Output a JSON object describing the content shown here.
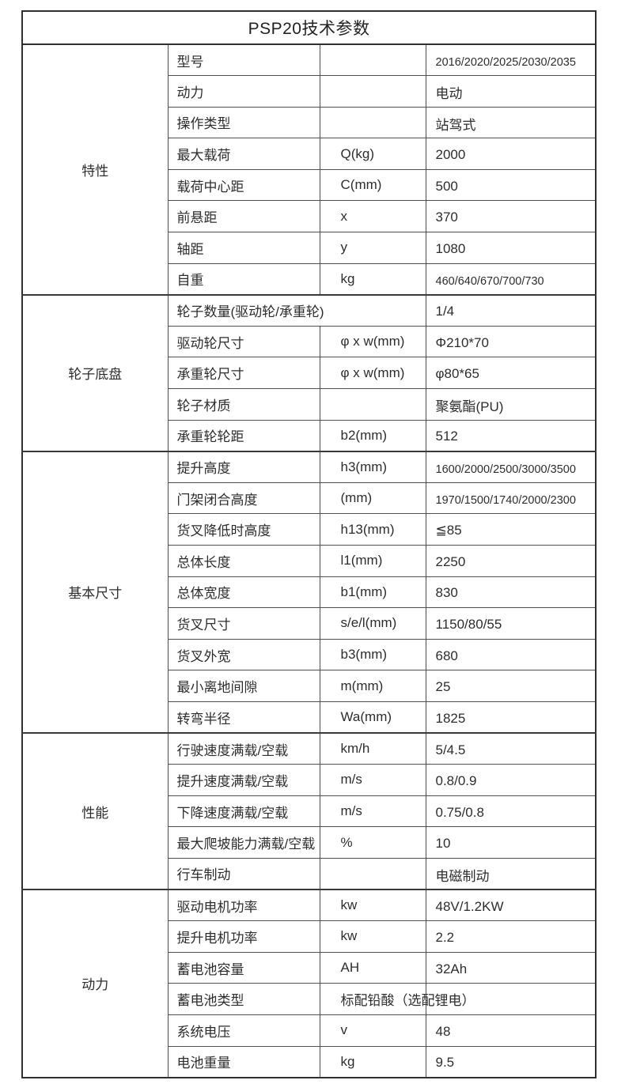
{
  "title": "PSP20技术参数",
  "table": {
    "sections": [
      {
        "label": "特性",
        "rows": [
          {
            "param": "型号",
            "symbol": "",
            "value": "2016/2020/2025/2030/2035"
          },
          {
            "param": "动力",
            "symbol": "",
            "value": "电动"
          },
          {
            "param": "操作类型",
            "symbol": "",
            "value": "站驾式"
          },
          {
            "param": "最大载荷",
            "symbol": "Q(kg)",
            "value": "2000"
          },
          {
            "param": "载荷中心距",
            "symbol": "C(mm)",
            "value": "500"
          },
          {
            "param": "前悬距",
            "symbol": "x",
            "value": "370"
          },
          {
            "param": "轴距",
            "symbol": "y",
            "value": "1080"
          },
          {
            "param": "自重",
            "symbol": "kg",
            "value": "460/640/670/700/730"
          }
        ]
      },
      {
        "label": "轮子底盘",
        "rows": [
          {
            "param": "轮子数量(驱动轮/承重轮)",
            "span": true,
            "value": "1/4"
          },
          {
            "param": "驱动轮尺寸",
            "symbol": "φ x w(mm)",
            "value": "Φ210*70"
          },
          {
            "param": "承重轮尺寸",
            "symbol": "φ x w(mm)",
            "value": "φ80*65"
          },
          {
            "param": "轮子材质",
            "symbol": "",
            "value": "聚氨酯(PU)"
          },
          {
            "param": "承重轮轮距",
            "symbol": "b2(mm)",
            "value": "512"
          }
        ]
      },
      {
        "label": "基本尺寸",
        "rows": [
          {
            "param": "提升高度",
            "symbol": "h3(mm)",
            "value": "1600/2000/2500/3000/3500"
          },
          {
            "param": "门架闭合高度",
            "symbol": "(mm)",
            "value": "1970/1500/1740/2000/2300"
          },
          {
            "param": "货叉降低时高度",
            "symbol": "h13(mm)",
            "value": "≦85"
          },
          {
            "param": "总体长度",
            "symbol": "l1(mm)",
            "value": "2250"
          },
          {
            "param": "总体宽度",
            "symbol": "b1(mm)",
            "value": "830"
          },
          {
            "param": "货叉尺寸",
            "symbol": "s/e/l(mm)",
            "value": "1150/80/55"
          },
          {
            "param": "货叉外宽",
            "symbol": "b3(mm)",
            "value": "680"
          },
          {
            "param": "最小离地间隙",
            "symbol": "m(mm)",
            "value": "25"
          },
          {
            "param": "转弯半径",
            "symbol": "Wa(mm)",
            "value": "1825"
          }
        ]
      },
      {
        "label": "性能",
        "rows": [
          {
            "param": "行驶速度满载/空载",
            "symbol": "km/h",
            "value": "5/4.5"
          },
          {
            "param": "提升速度满载/空载",
            "symbol": "m/s",
            "value": "0.8/0.9"
          },
          {
            "param": "下降速度满载/空载",
            "symbol": "m/s",
            "value": "0.75/0.8"
          },
          {
            "param": "最大爬坡能力满载/空载",
            "symbol": "%",
            "value": "10"
          },
          {
            "param": "行车制动",
            "symbol": "",
            "value": "电磁制动"
          }
        ]
      },
      {
        "label": "动力",
        "rows": [
          {
            "param": "驱动电机功率",
            "symbol": "kw",
            "value": "48V/1.2KW"
          },
          {
            "param": "提升电机功率",
            "symbol": "kw",
            "value": "2.2"
          },
          {
            "param": "蓄电池容量",
            "symbol": "AH",
            "value": "32Ah"
          },
          {
            "param": "蓄电池类型",
            "symbol": "标配铅酸（选配锂电）",
            "value": "",
            "overflow": true
          },
          {
            "param": "系统电压",
            "symbol": "v",
            "value": "48"
          },
          {
            "param": "电池重量",
            "symbol": "kg",
            "value": "9.5"
          }
        ]
      }
    ]
  }
}
